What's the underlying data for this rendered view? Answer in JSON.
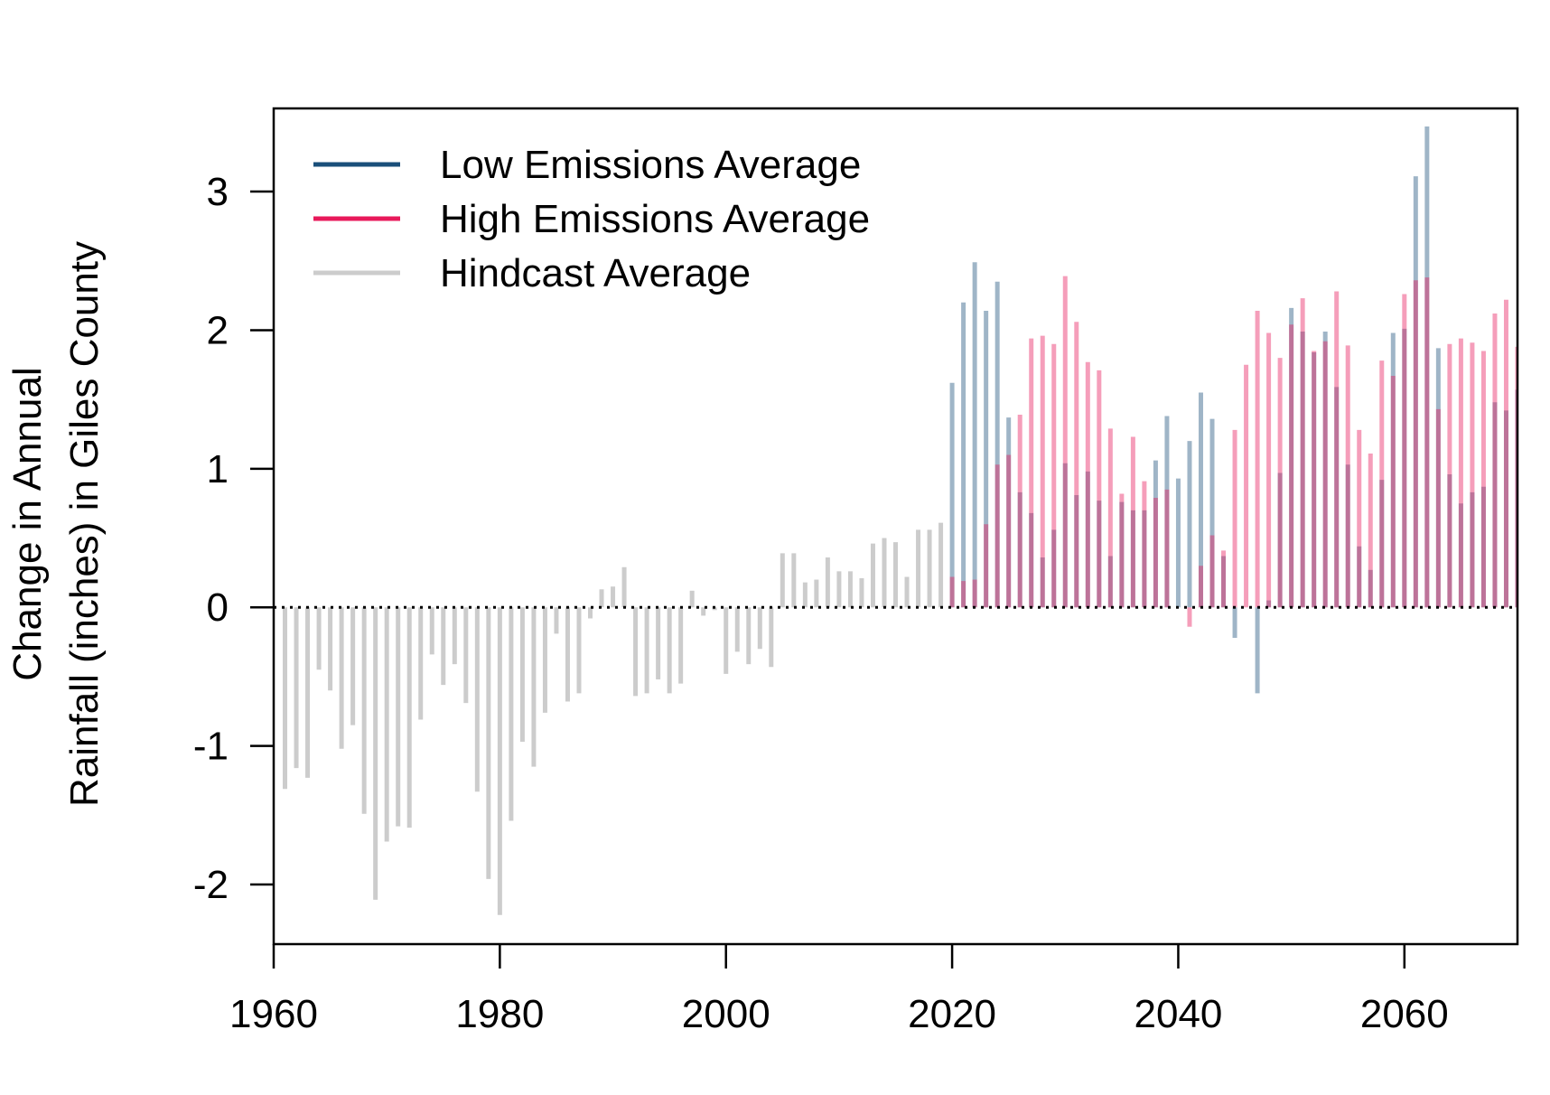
{
  "chart_data": {
    "type": "bar",
    "title": "",
    "xlabel": "",
    "ylabel_line1": "Change in Annual",
    "ylabel_line2": "Rainfall (inches) in Giles County",
    "xlim": [
      1960,
      2070
    ],
    "ylim": [
      -2.43,
      3.6
    ],
    "x_ticks": [
      1960,
      1980,
      2000,
      2020,
      2040,
      2060
    ],
    "y_ticks": [
      -2,
      -1,
      0,
      1,
      2,
      3
    ],
    "reference_line": 0,
    "legend_position": "top-left",
    "legend": [
      {
        "label": "Low Emissions Average",
        "color": "#1a4f7a"
      },
      {
        "label": "High Emissions Average",
        "color": "#e8195a"
      },
      {
        "label": "Hindcast Average",
        "color": "#cccccc"
      }
    ],
    "series": [
      {
        "name": "Hindcast Average",
        "color": "#cccccc",
        "years": [
          1961,
          1962,
          1963,
          1964,
          1965,
          1966,
          1967,
          1968,
          1969,
          1970,
          1971,
          1972,
          1973,
          1974,
          1975,
          1976,
          1977,
          1978,
          1979,
          1980,
          1981,
          1982,
          1983,
          1984,
          1985,
          1986,
          1987,
          1988,
          1989,
          1990,
          1991,
          1992,
          1993,
          1994,
          1995,
          1996,
          1997,
          1998,
          1999,
          2000,
          2001,
          2002,
          2003,
          2004,
          2005,
          2006,
          2007,
          2008,
          2009,
          2010,
          2011,
          2012,
          2013,
          2014,
          2015,
          2016,
          2017,
          2018,
          2019
        ],
        "values": [
          -1.31,
          -1.16,
          -1.23,
          -0.45,
          -0.6,
          -1.02,
          -0.85,
          -1.49,
          -2.11,
          -1.69,
          -1.58,
          -1.59,
          -0.81,
          -0.34,
          -0.56,
          -0.41,
          -0.69,
          -1.33,
          -1.96,
          -2.22,
          -1.54,
          -0.97,
          -1.15,
          -0.76,
          -0.19,
          -0.68,
          -0.62,
          -0.08,
          0.13,
          0.15,
          0.29,
          -0.64,
          -0.62,
          -0.52,
          -0.62,
          -0.55,
          0.12,
          -0.06,
          -0.02,
          -0.48,
          -0.32,
          -0.41,
          -0.3,
          -0.43,
          0.39,
          0.39,
          0.18,
          0.2,
          0.36,
          0.26,
          0.26,
          0.21,
          0.46,
          0.5,
          0.47,
          0.22,
          0.56,
          0.56,
          0.61
        ]
      },
      {
        "name": "Low Emissions Average",
        "color": "#1a4f7a",
        "years": [
          2020,
          2021,
          2022,
          2023,
          2024,
          2025,
          2026,
          2027,
          2028,
          2029,
          2030,
          2031,
          2032,
          2033,
          2034,
          2035,
          2036,
          2037,
          2038,
          2039,
          2040,
          2041,
          2042,
          2043,
          2044,
          2045,
          2046,
          2047,
          2048,
          2049,
          2050,
          2051,
          2052,
          2053,
          2054,
          2055,
          2056,
          2057,
          2058,
          2059,
          2060,
          2061,
          2062,
          2063,
          2064,
          2065,
          2066,
          2067,
          2068,
          2069,
          2070
        ],
        "values": [
          1.62,
          2.2,
          2.49,
          2.14,
          2.35,
          1.37,
          0.83,
          0.68,
          0.36,
          0.56,
          1.04,
          0.81,
          0.98,
          0.77,
          0.37,
          0.76,
          0.7,
          0.7,
          1.06,
          1.38,
          0.93,
          1.2,
          1.55,
          1.36,
          0.37,
          -0.22,
          0.0,
          -0.62,
          0.05,
          0.97,
          2.16,
          1.99,
          1.84,
          1.99,
          1.59,
          1.03,
          0.44,
          0.27,
          0.92,
          1.98,
          2.01,
          3.11,
          3.47,
          1.87,
          0.96,
          0.75,
          0.83,
          0.87,
          1.48,
          1.42,
          1.57
        ]
      },
      {
        "name": "High Emissions Average",
        "color": "#e8195a",
        "years": [
          2020,
          2021,
          2022,
          2023,
          2024,
          2025,
          2026,
          2027,
          2028,
          2029,
          2030,
          2031,
          2032,
          2033,
          2034,
          2035,
          2036,
          2037,
          2038,
          2039,
          2040,
          2041,
          2042,
          2043,
          2044,
          2045,
          2046,
          2047,
          2048,
          2049,
          2050,
          2051,
          2052,
          2053,
          2054,
          2055,
          2056,
          2057,
          2058,
          2059,
          2060,
          2061,
          2062,
          2063,
          2064,
          2065,
          2066,
          2067,
          2068,
          2069,
          2070
        ],
        "values": [
          0.22,
          0.19,
          0.2,
          0.6,
          1.03,
          1.1,
          1.39,
          1.94,
          1.96,
          1.9,
          2.39,
          2.06,
          1.77,
          1.71,
          1.29,
          0.82,
          1.23,
          0.91,
          0.79,
          0.85,
          0.0,
          -0.14,
          0.3,
          0.52,
          0.41,
          1.28,
          1.75,
          2.14,
          1.98,
          1.8,
          2.04,
          2.23,
          1.85,
          1.92,
          2.28,
          1.89,
          1.28,
          1.11,
          1.78,
          1.67,
          2.26,
          2.36,
          2.38,
          1.43,
          1.9,
          1.94,
          1.91,
          1.85,
          2.12,
          2.22,
          1.88
        ]
      }
    ]
  }
}
